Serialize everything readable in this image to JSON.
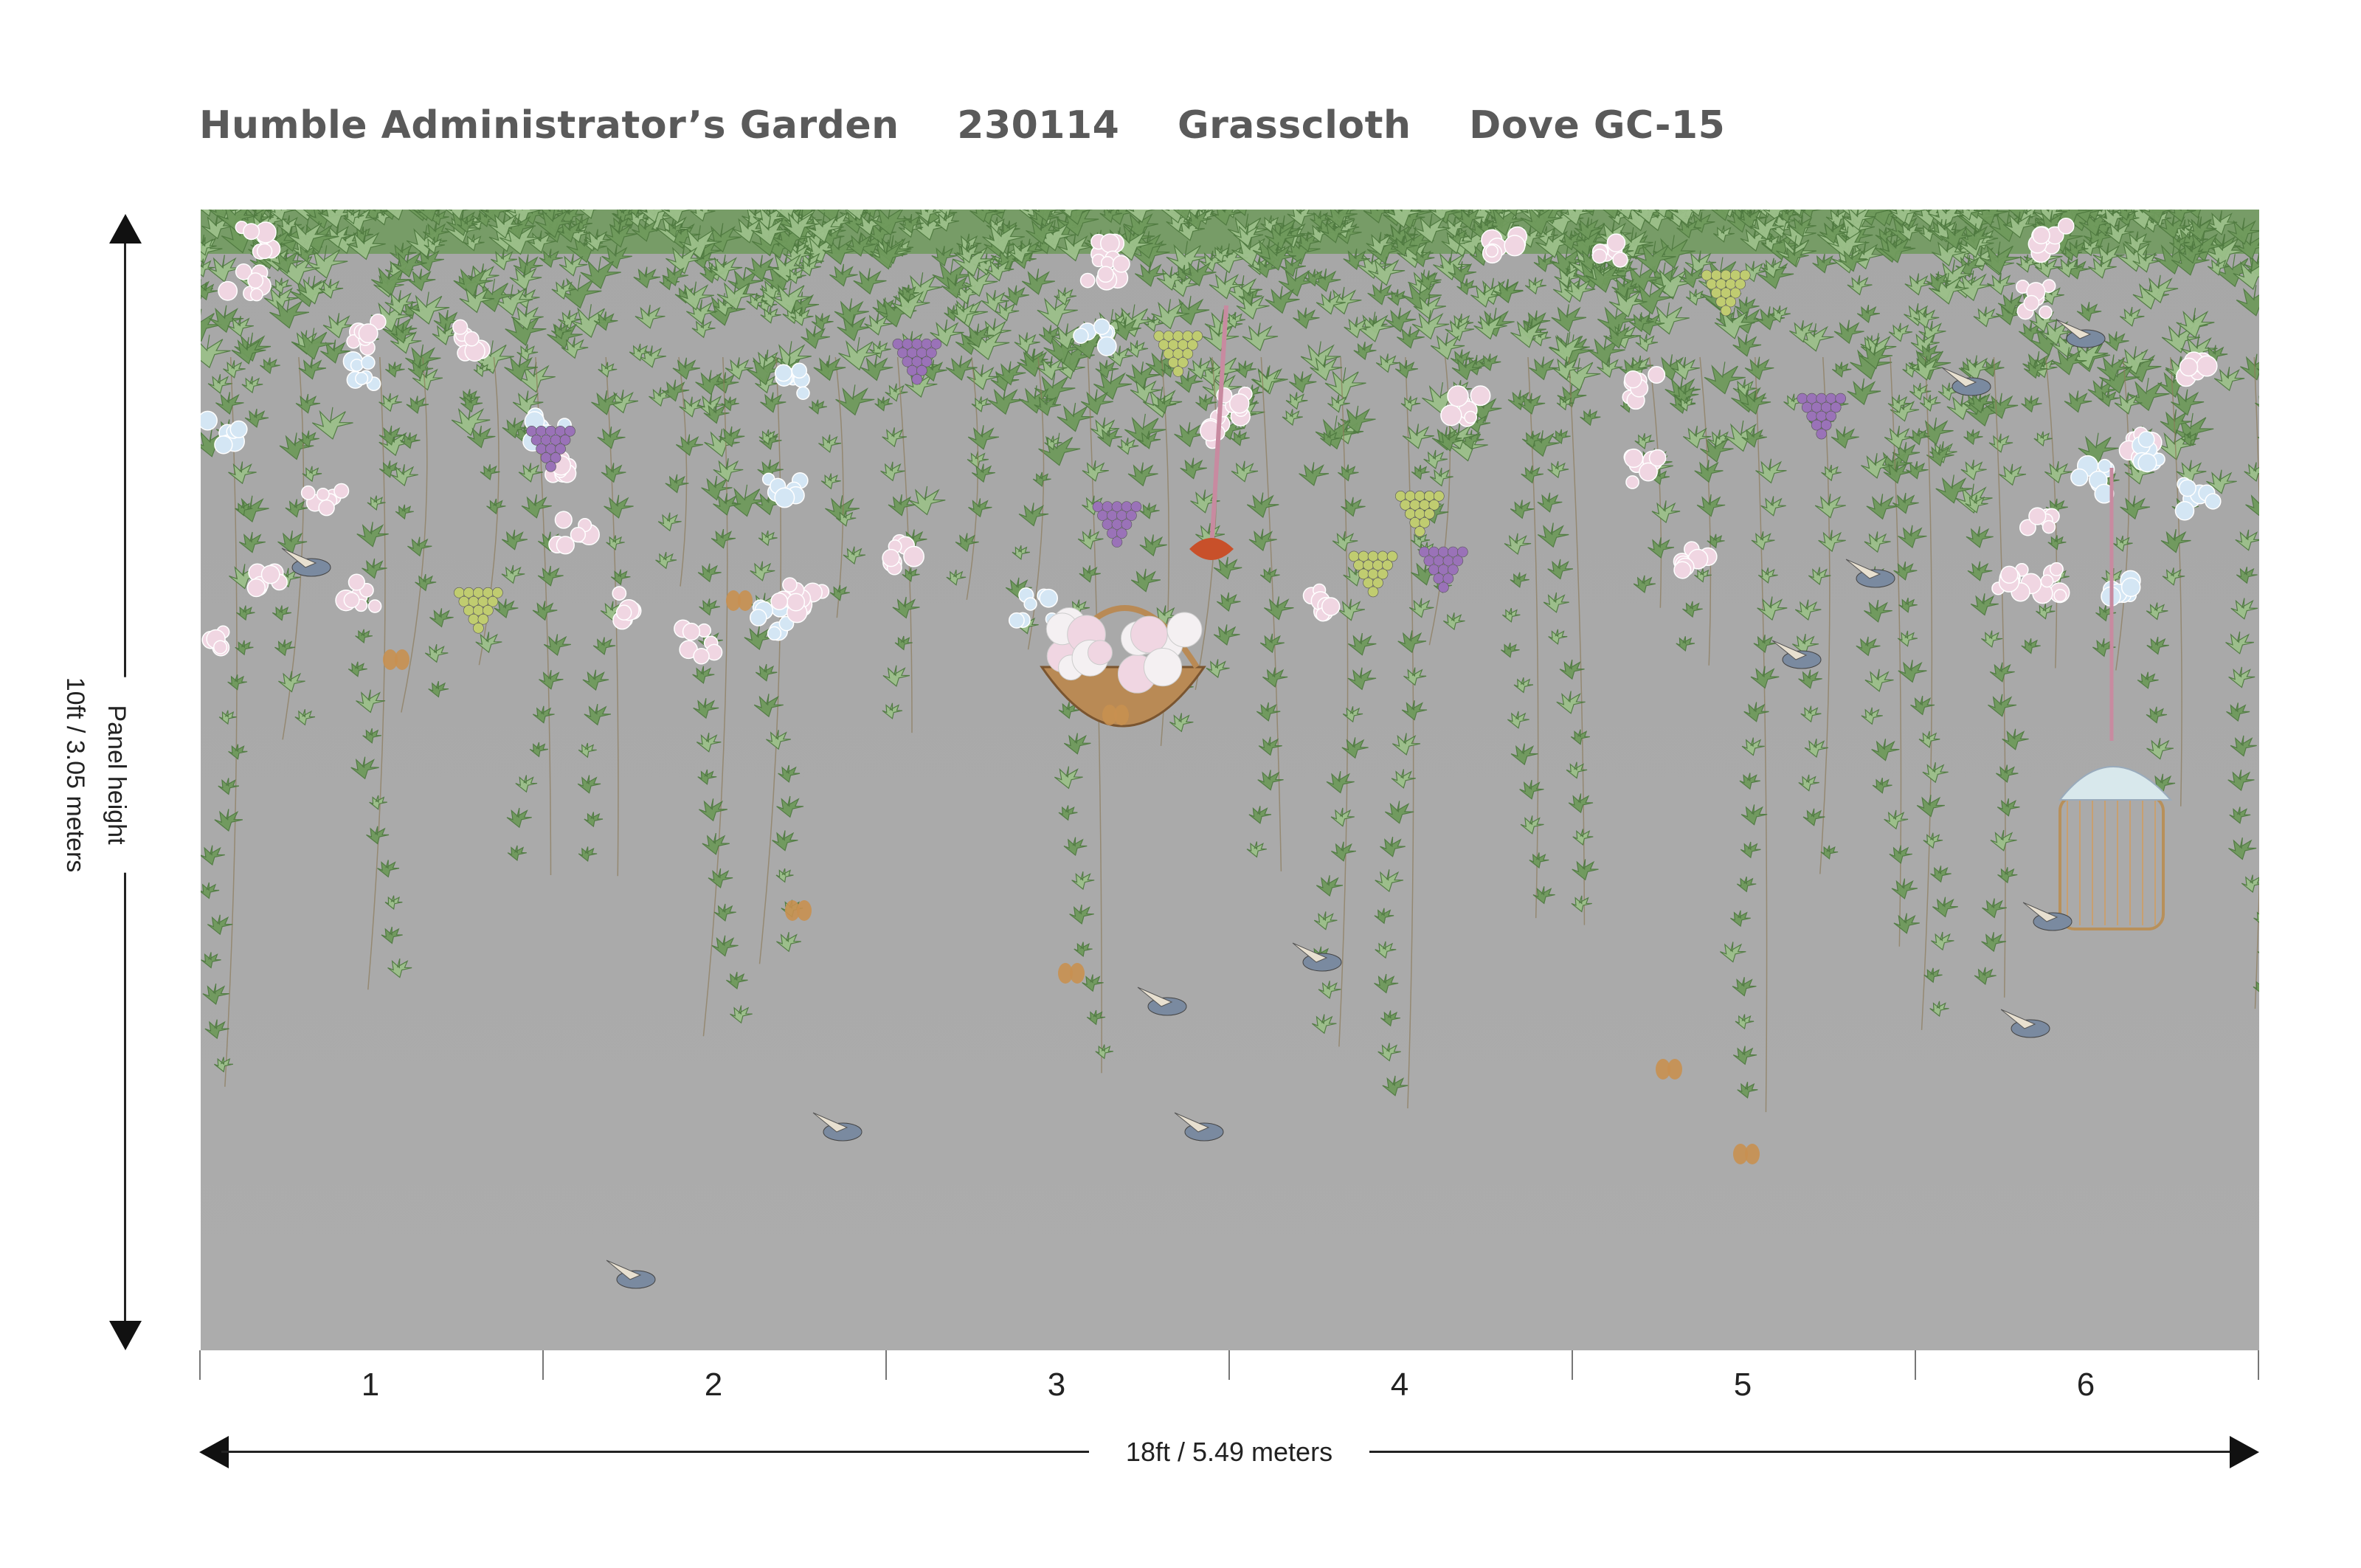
{
  "header": {
    "pattern_name": "Humble Administrator’s Garden",
    "pattern_code": "230114",
    "material": "Grasscloth",
    "colorway": "Dove GC-15"
  },
  "dimensions": {
    "height_label": "Panel height",
    "height_value": "10ft / 3.05 meters",
    "width_value": "18ft / 5.49 meters"
  },
  "panels": [
    "1",
    "2",
    "3",
    "4",
    "5",
    "6"
  ],
  "colors": {
    "background": "#aaaaaa",
    "foliage": "#6f9a5c",
    "foliage_light": "#9cc08a",
    "blossom_pink": "#f0d6e2",
    "blossom_blue": "#d4e6f4",
    "grape_purple": "#9a72b8",
    "grape_green": "#c0cc70",
    "basket": "#b98a55",
    "title_text": "#5a5a5a"
  }
}
